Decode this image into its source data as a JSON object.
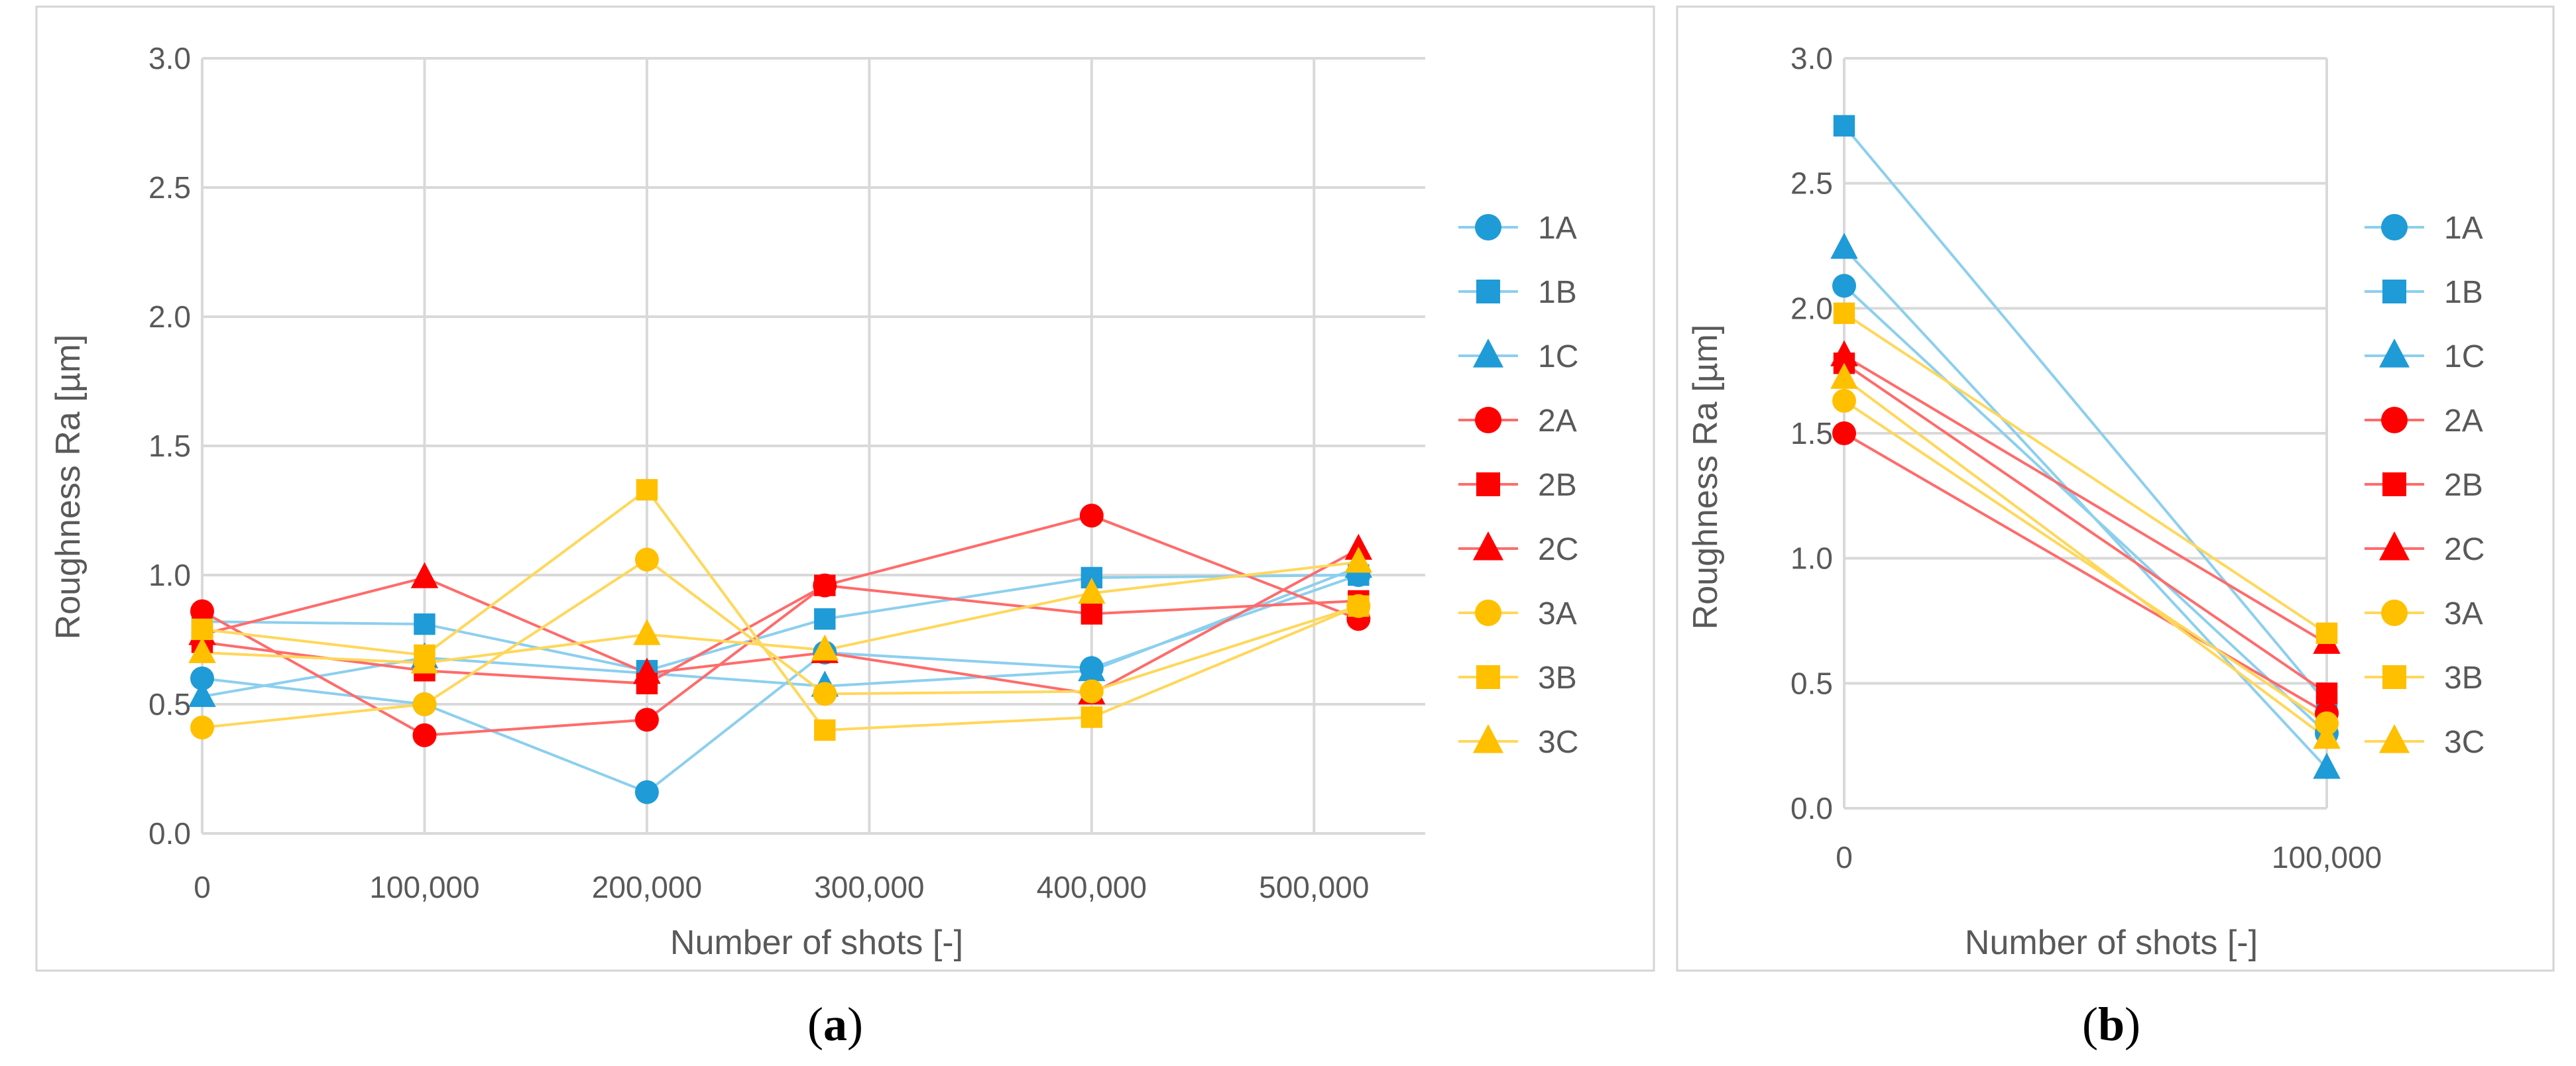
{
  "series_styles": [
    {
      "name": "1A",
      "color": "#1f9bd7",
      "marker": "circle"
    },
    {
      "name": "1B",
      "color": "#1f9bd7",
      "marker": "square"
    },
    {
      "name": "1C",
      "color": "#1f9bd7",
      "marker": "triangle"
    },
    {
      "name": "2A",
      "color": "#ff0000",
      "marker": "circle"
    },
    {
      "name": "2B",
      "color": "#ff0000",
      "marker": "square"
    },
    {
      "name": "2C",
      "color": "#ff0000",
      "marker": "triangle"
    },
    {
      "name": "3A",
      "color": "#ffc000",
      "marker": "circle"
    },
    {
      "name": "3B",
      "color": "#ffc000",
      "marker": "square"
    },
    {
      "name": "3C",
      "color": "#ffc000",
      "marker": "triangle"
    }
  ],
  "line_colors": {
    "blue": "#8ccfee",
    "red": "#ff6b6b",
    "yellow": "#ffd75a"
  },
  "chart_data": [
    {
      "type": "line",
      "panel_label": {
        "open": "(",
        "letter": "a",
        "close": ")"
      },
      "xlabel": "Number of shots [-]",
      "ylabel": "Roughness Ra [µm]",
      "xlim": [
        0,
        550000
      ],
      "ylim": [
        0,
        3.0
      ],
      "x_ticks": [
        0,
        100000,
        200000,
        300000,
        400000,
        500000
      ],
      "x_tick_labels": [
        "0",
        "100,000",
        "200,000",
        "300,000",
        "400,000",
        "500,000"
      ],
      "y_ticks": [
        0,
        0.5,
        1.0,
        1.5,
        2.0,
        2.5,
        3.0
      ],
      "y_tick_labels": [
        "0.0",
        "0.5",
        "1.0",
        "1.5",
        "2.0",
        "2.5",
        "3.0"
      ],
      "grid": true,
      "legend": "right",
      "x": [
        0,
        100000,
        200000,
        280000,
        400000,
        520000
      ],
      "series": [
        {
          "name": "1A",
          "values": [
            0.6,
            0.5,
            0.16,
            0.7,
            0.64,
            1.0
          ]
        },
        {
          "name": "1B",
          "values": [
            0.82,
            0.81,
            0.63,
            0.83,
            0.99,
            1.0
          ]
        },
        {
          "name": "1C",
          "values": [
            0.53,
            0.68,
            0.62,
            0.57,
            0.63,
            1.03
          ]
        },
        {
          "name": "2A",
          "values": [
            0.86,
            0.38,
            0.44,
            0.96,
            1.23,
            0.83
          ]
        },
        {
          "name": "2B",
          "values": [
            0.74,
            0.63,
            0.58,
            0.96,
            0.85,
            0.9
          ]
        },
        {
          "name": "2C",
          "values": [
            0.77,
            0.99,
            0.62,
            0.7,
            0.54,
            1.1
          ]
        },
        {
          "name": "3A",
          "values": [
            0.41,
            0.5,
            1.06,
            0.54,
            0.55,
            0.88
          ]
        },
        {
          "name": "3B",
          "values": [
            0.79,
            0.69,
            1.33,
            0.4,
            0.45,
            0.88
          ]
        },
        {
          "name": "3C",
          "values": [
            0.7,
            0.66,
            0.77,
            0.71,
            0.93,
            1.05
          ]
        }
      ]
    },
    {
      "type": "line",
      "panel_label": {
        "open": "(",
        "letter": "b",
        "close": ")"
      },
      "xlabel": "Number of shots [-]",
      "ylabel": "Roughness Ra [µm]",
      "xlim": [
        0,
        100000
      ],
      "ylim": [
        0,
        3.0
      ],
      "x_ticks": [
        0,
        100000
      ],
      "x_tick_labels": [
        "0",
        "100,000"
      ],
      "y_ticks": [
        0,
        0.5,
        1.0,
        1.5,
        2.0,
        2.5,
        3.0
      ],
      "y_tick_labels": [
        "0.0",
        "0.5",
        "1.0",
        "1.5",
        "2.0",
        "2.5",
        "3.0"
      ],
      "grid": true,
      "legend": "right",
      "x": [
        0,
        100000
      ],
      "series": [
        {
          "name": "1A",
          "values": [
            2.09,
            0.3
          ]
        },
        {
          "name": "1B",
          "values": [
            2.73,
            0.42
          ]
        },
        {
          "name": "1C",
          "values": [
            2.24,
            0.16
          ]
        },
        {
          "name": "2A",
          "values": [
            1.5,
            0.38
          ]
        },
        {
          "name": "2B",
          "values": [
            1.78,
            0.46
          ]
        },
        {
          "name": "2C",
          "values": [
            1.81,
            0.66
          ]
        },
        {
          "name": "3A",
          "values": [
            1.63,
            0.34
          ]
        },
        {
          "name": "3B",
          "values": [
            1.98,
            0.7
          ]
        },
        {
          "name": "3C",
          "values": [
            1.72,
            0.28
          ]
        }
      ]
    }
  ]
}
